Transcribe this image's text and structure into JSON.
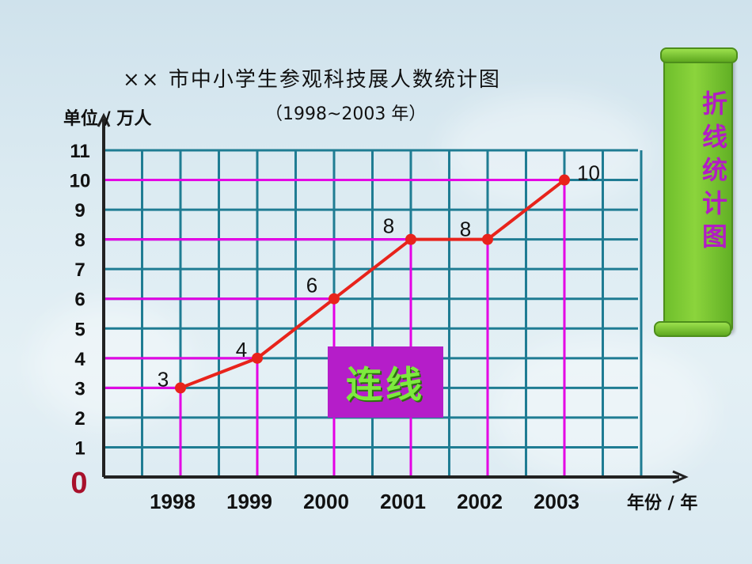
{
  "header": {
    "title": "×× 市中小学生参观科技展人数统计图",
    "subtitle": "（1998~2003 年）"
  },
  "chart_data": {
    "type": "line",
    "title": "×× 市中小学生参观科技展人数统计图",
    "subtitle": "（1998~2003 年）",
    "xlabel": "年份 / 年",
    "ylabel": "单位 / 万人",
    "categories": [
      "1998",
      "1999",
      "2000",
      "2001",
      "2002",
      "2003"
    ],
    "series": [
      {
        "values": [
          3,
          4,
          6,
          8,
          8,
          10
        ]
      }
    ],
    "ylim": [
      0,
      11
    ],
    "yticks": [
      "0",
      "1",
      "2",
      "3",
      "4",
      "5",
      "6",
      "7",
      "8",
      "9",
      "10",
      "11"
    ],
    "grid": true,
    "colors": {
      "line": "#e8231b",
      "point": "#e8231b",
      "gridline": "#1f7c93",
      "guide": "#e400e4",
      "axis": "#222222",
      "origin": "#a8102b"
    }
  },
  "annotation": {
    "connect_label": "连线"
  },
  "side_banner": {
    "text": "折线统计图"
  }
}
